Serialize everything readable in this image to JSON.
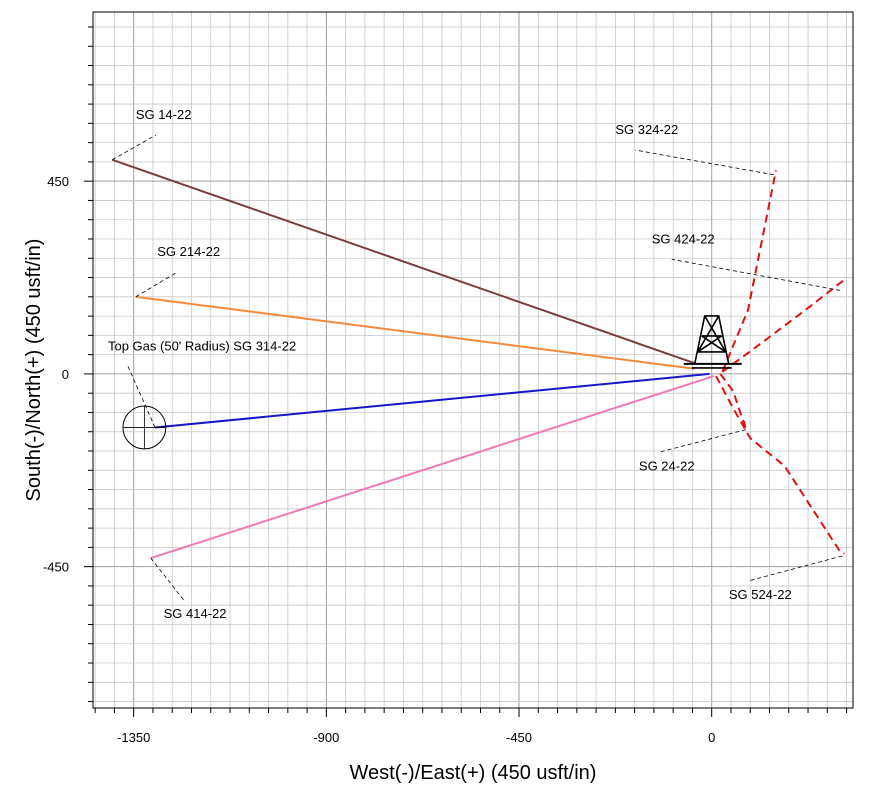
{
  "chart_data": {
    "type": "line",
    "title": "",
    "xlabel": "West(-)/East(+) (450 usft/in)",
    "ylabel": "South(-)/North(+) (450 usft/in)",
    "xlim": [
      -1445,
      330
    ],
    "ylim": [
      -780,
      845
    ],
    "x_ticks": [
      -1350,
      -900,
      -450,
      0
    ],
    "y_ticks": [
      450,
      0,
      -450
    ],
    "minor_grid_step": 45,
    "grid": true,
    "colors": {
      "grid_minor": "#c8c8c8",
      "grid_major": "#a0a0a0",
      "leader": "#000000"
    },
    "rig_symbol": "drilling-rig-icon",
    "surface_location": [
      0,
      0
    ],
    "wells": [
      {
        "name": "SG 14-22",
        "color": "#7a3d3d",
        "dash": "solid",
        "path": [
          [
            -40,
            25
          ],
          [
            -1400,
            500
          ]
        ],
        "label_anchor": [
          -1400,
          500
        ],
        "label_at": [
          -1345,
          595
        ]
      },
      {
        "name": "SG 214-22",
        "color": "#f58a3c",
        "dash": "solid",
        "path": [
          [
            -40,
            12
          ],
          [
            -1345,
            180
          ]
        ],
        "label_anchor": [
          -1345,
          180
        ],
        "label_at": [
          -1295,
          275
        ]
      },
      {
        "name": "Top Gas (50' Radius) SG 314-22",
        "color": "#1616c8",
        "dash": "solid",
        "path": [
          [
            -5,
            0
          ],
          [
            -1300,
            -125
          ]
        ],
        "label_anchor": [
          -1300,
          -125
        ],
        "label_at": [
          -1410,
          55
        ],
        "target_circle": {
          "center": [
            -1325,
            -125
          ],
          "radius": 50
        }
      },
      {
        "name": "SG 414-22",
        "color": "#f07ab5",
        "dash": "solid",
        "path": [
          [
            5,
            -5
          ],
          [
            -1310,
            -430
          ]
        ],
        "label_anchor": [
          -1310,
          -430
        ],
        "label_at": [
          -1280,
          -570
        ]
      },
      {
        "name": "SG 324-22",
        "color": "#e01010",
        "dash": "dashed",
        "path": [
          [
            25,
            5
          ],
          [
            85,
            150
          ],
          [
            145,
            450
          ],
          [
            150,
            475
          ]
        ],
        "label_anchor": [
          145,
          465
        ],
        "label_at": [
          -225,
          560
        ]
      },
      {
        "name": "SG 424-22",
        "color": "#e01010",
        "dash": "dashed",
        "path": [
          [
            25,
            5
          ],
          [
            100,
            60
          ],
          [
            220,
            150
          ],
          [
            310,
            220
          ]
        ],
        "label_anchor": [
          300,
          195
        ],
        "label_at": [
          -140,
          305
        ]
      },
      {
        "name": "SG 24-22",
        "color": "#e01010",
        "dash": "dashed",
        "path": [
          [
            20,
            0
          ],
          [
            50,
            -40
          ],
          [
            80,
            -130
          ],
          [
            75,
            -110
          ]
        ],
        "label_anchor": [
          80,
          -130
        ],
        "label_at": [
          -170,
          -225
        ]
      },
      {
        "name": "SG 524-22",
        "color": "#e01010",
        "dash": "dashed",
        "path": [
          [
            10,
            -5
          ],
          [
            50,
            -80
          ],
          [
            90,
            -150
          ],
          [
            170,
            -215
          ],
          [
            300,
            -415
          ],
          [
            310,
            -420
          ]
        ],
        "label_anchor": [
          305,
          -425
        ],
        "label_at": [
          40,
          -525
        ]
      }
    ]
  }
}
